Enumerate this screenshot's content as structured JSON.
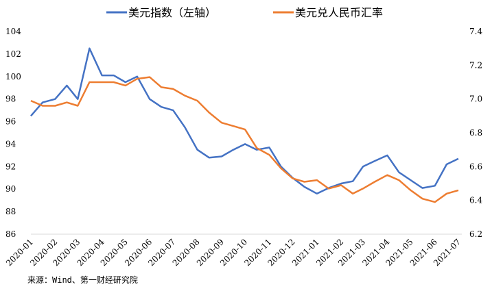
{
  "chart_data": {
    "type": "line",
    "legend_position": "top",
    "grid": false,
    "x": [
      "2020-01-01",
      "2020-01-16",
      "2020-02-01",
      "2020-02-16",
      "2020-03-01",
      "2020-03-16",
      "2020-04-01",
      "2020-04-16",
      "2020-05-01",
      "2020-05-16",
      "2020-06-01",
      "2020-06-16",
      "2020-07-01",
      "2020-07-16",
      "2020-08-01",
      "2020-08-16",
      "2020-09-01",
      "2020-09-16",
      "2020-10-01",
      "2020-10-16",
      "2020-11-01",
      "2020-11-16",
      "2020-12-01",
      "2020-12-16",
      "2021-01-01",
      "2021-01-16",
      "2021-02-01",
      "2021-02-16",
      "2021-03-01",
      "2021-03-16",
      "2021-04-01",
      "2021-04-16",
      "2021-05-01",
      "2021-05-16",
      "2021-06-01",
      "2021-06-16",
      "2021-07-01"
    ],
    "x_tick_labels": [
      "2020-01",
      "2020-02",
      "2020-03",
      "2020-04",
      "2020-05",
      "2020-06",
      "2020-07",
      "2020-08",
      "2020-09",
      "2020-10",
      "2020-11",
      "2020-12",
      "2021-01",
      "2021-02",
      "2021-03",
      "2021-04",
      "2021-05",
      "2021-06",
      "2021-07"
    ],
    "y_left": {
      "range": [
        86,
        104
      ],
      "ticks": [
        "86",
        "88",
        "90",
        "92",
        "94",
        "96",
        "98",
        "100",
        "102",
        "104"
      ]
    },
    "y_right": {
      "range": [
        6.2,
        7.4
      ],
      "ticks": [
        "6.2",
        "6.4",
        "6.6",
        "6.8",
        "7.0",
        "7.2",
        "7.4"
      ]
    },
    "series": [
      {
        "name": "美元指数（左轴）",
        "axis": "left",
        "color": "#4472C4",
        "values": [
          96.5,
          97.7,
          98.0,
          99.2,
          98.0,
          102.5,
          100.1,
          100.1,
          99.5,
          100.0,
          98.0,
          97.3,
          97.0,
          95.5,
          93.5,
          92.8,
          92.9,
          93.5,
          94.0,
          93.5,
          93.7,
          92.0,
          91.0,
          90.2,
          89.6,
          90.1,
          90.5,
          90.7,
          92.0,
          92.5,
          93.0,
          91.5,
          90.8,
          90.1,
          90.3,
          92.2,
          92.7
        ]
      },
      {
        "name": "美元兑人民币汇率",
        "axis": "right",
        "color": "#ED7D31",
        "values": [
          6.99,
          6.96,
          6.96,
          6.98,
          6.96,
          7.1,
          7.1,
          7.1,
          7.08,
          7.12,
          7.13,
          7.07,
          7.06,
          7.02,
          6.99,
          6.92,
          6.86,
          6.84,
          6.82,
          6.71,
          6.67,
          6.59,
          6.53,
          6.51,
          6.52,
          6.47,
          6.49,
          6.44,
          6.47,
          6.51,
          6.55,
          6.52,
          6.46,
          6.41,
          6.39,
          6.44,
          6.46
        ]
      }
    ]
  },
  "source": "来源：Wind、第一财经研究院"
}
